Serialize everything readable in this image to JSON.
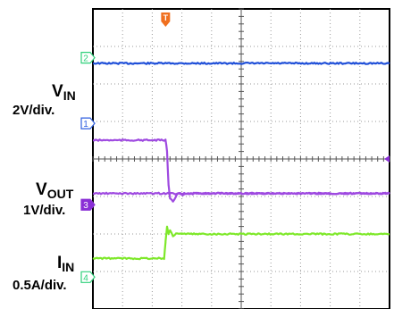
{
  "chart_data": {
    "type": "line",
    "title": "",
    "trigger_marker": "T",
    "grid": true,
    "x": {
      "divisions": 10,
      "trigger_division": 2.45
    },
    "channels": [
      {
        "channel_number": "2",
        "label_main": "",
        "label_sub": "",
        "scale": "",
        "color": "#1f4fd8",
        "marker_color": "#2fd07a",
        "ground_division": 6.7,
        "points": [
          [
            0,
            6.55
          ],
          [
            10,
            6.55
          ]
        ]
      },
      {
        "channel_number": "1",
        "label_main": "V",
        "label_sub": "IN",
        "scale": "2V/div.",
        "color": "#9e49e0",
        "marker_color": "#2f5fe0",
        "ground_division": 4.95,
        "points": [
          [
            0,
            4.5
          ],
          [
            2.45,
            4.5
          ],
          [
            2.5,
            4.2
          ],
          [
            2.55,
            3.3
          ],
          [
            2.6,
            2.95
          ],
          [
            2.7,
            2.85
          ],
          [
            2.8,
            3.0
          ],
          [
            2.9,
            3.1
          ],
          [
            3.0,
            3.05
          ],
          [
            3.5,
            3.08
          ],
          [
            10,
            3.08
          ]
        ]
      },
      {
        "channel_number": "3",
        "label_main": "V",
        "label_sub": "OUT",
        "scale": "1V/div.",
        "color": "#9e49e0",
        "marker_color": "#8a2fd6",
        "ground_division": 2.78,
        "points": [
          [
            0,
            3.08
          ],
          [
            10,
            3.08
          ]
        ]
      },
      {
        "channel_number": "4",
        "label_main": "I",
        "label_sub": "IN",
        "scale": "0.5A/div.",
        "color": "#7ee82a",
        "marker_color": "#2fd07a",
        "ground_division": 0.85,
        "points": [
          [
            0,
            1.35
          ],
          [
            2.4,
            1.35
          ],
          [
            2.45,
            1.8
          ],
          [
            2.5,
            2.2
          ],
          [
            2.55,
            2.0
          ],
          [
            2.6,
            2.1
          ],
          [
            2.7,
            1.95
          ],
          [
            2.8,
            2.02
          ],
          [
            3.0,
            2.0
          ],
          [
            10,
            2.0
          ]
        ]
      }
    ]
  }
}
